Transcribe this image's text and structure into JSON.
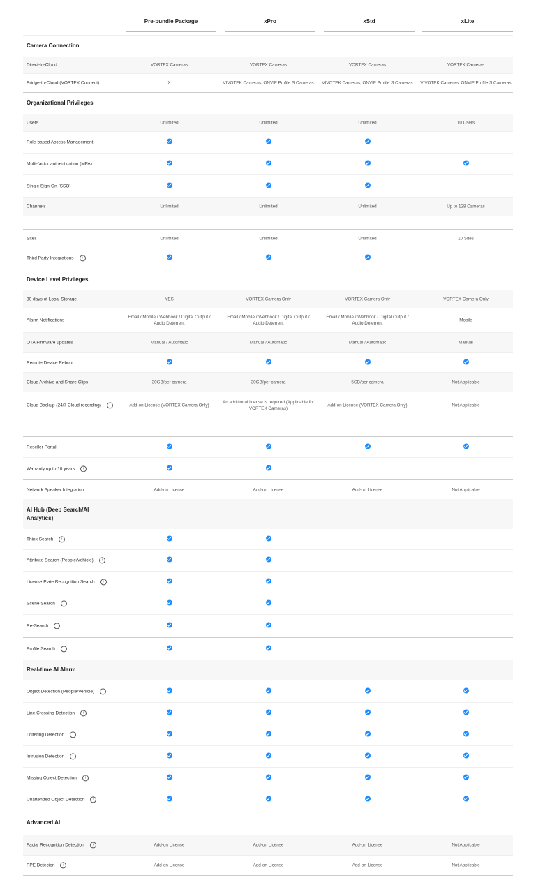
{
  "colors": {
    "accent": "#1a8cff",
    "header_underline": "#8fc4f5"
  },
  "icons": {
    "check": "check-circle-icon",
    "info": "info-circle-icon"
  },
  "plans": [
    "Pre-bundle Package",
    "xPro",
    "xStd",
    "xLite"
  ],
  "rows": [
    {
      "k": "section",
      "label": "Camera Connection"
    },
    {
      "k": "row",
      "label": "Direct-to-Cloud",
      "values": [
        "VORTEX Cameras",
        "VORTEX Cameras",
        "VORTEX Cameras",
        "VORTEX Cameras"
      ]
    },
    {
      "k": "row",
      "label": "Bridge-to-Cloud (VORTEX Connect)",
      "values": [
        "X",
        "VIVOTEK Cameras, ONVIF Profile S Cameras",
        "VIVOTEK Cameras, ONVIF Profile S Cameras",
        "VIVOTEK Cameras, ONVIF Profile S Cameras"
      ]
    },
    {
      "k": "section",
      "label": "Organizational Privileges"
    },
    {
      "k": "row",
      "label": "Users",
      "values": [
        "Unlimited",
        "Unlimited",
        "Unlimited",
        "10 Users"
      ]
    },
    {
      "k": "row",
      "label": "Role-based Access Management",
      "values": [
        "check",
        "check",
        "check",
        ""
      ]
    },
    {
      "k": "row",
      "label": "Multi-factor authentication (MFA)",
      "values": [
        "check",
        "check",
        "check",
        "check"
      ]
    },
    {
      "k": "row",
      "label": "Single Sign-On (SSO)",
      "values": [
        "check",
        "check",
        "check",
        ""
      ]
    },
    {
      "k": "row",
      "label": "Channels",
      "values": [
        "Unlimited",
        "Unlimited",
        "Unlimited",
        "Up to 128 Cameras"
      ]
    },
    {
      "k": "spacer"
    },
    {
      "k": "row",
      "label": "Sites",
      "values": [
        "Unlimited",
        "Unlimited",
        "Unlimited",
        "10 Sites"
      ]
    },
    {
      "k": "row",
      "label": "Third Party Integrations",
      "info": true,
      "values": [
        "check",
        "check",
        "check",
        ""
      ]
    },
    {
      "k": "section",
      "label": "Device Level Privileges"
    },
    {
      "k": "row",
      "label": "30 days of Local Storage",
      "values": [
        "YES",
        "VORTEX Camera Only",
        "VORTEX Camera Only",
        "VORTEX Camera Only"
      ]
    },
    {
      "k": "row",
      "label": "Alarm Notifications",
      "values": [
        "Email / Mobile / Webhook / Digital Output / Audio Deterrent",
        "Email / Mobile / Webhook / Digital Output / Audio Deterrent",
        "Email / Mobile / Webhook / Digital Output / Audio Deterrent",
        "Mobile"
      ]
    },
    {
      "k": "row",
      "label": "OTA Firmware updates",
      "values": [
        "Manual / Automatic",
        "Manual / Automatic",
        "Manual / Automatic",
        "Manual"
      ]
    },
    {
      "k": "row",
      "label": "Remote Device Reboot",
      "values": [
        "check",
        "check",
        "check",
        "check"
      ]
    },
    {
      "k": "row",
      "label": "Cloud Archive and Share Clips",
      "values": [
        "30GB/per camera",
        "30GB/per camera",
        "5GB/per camera",
        "Not Applicable"
      ]
    },
    {
      "k": "row",
      "label": "Cloud Backup (24/7 Cloud recording)",
      "info": true,
      "values": [
        "Add-on License (VORTEX Camera Only)",
        "An additional license is required (Applicable for VORTEX Cameras)",
        "Add-on License (VORTEX Camera Only)",
        "Not Applicable"
      ]
    },
    {
      "k": "spacer"
    },
    {
      "k": "row",
      "label": "Reseller Portal",
      "values": [
        "check",
        "check",
        "check",
        "check"
      ]
    },
    {
      "k": "row",
      "label": "Warranty up to 10 years",
      "info": true,
      "values": [
        "check",
        "check",
        "",
        ""
      ]
    },
    {
      "k": "row",
      "label": "Network Speaker Integration",
      "values": [
        "Add-on License",
        "Add-on License",
        "Add-on License",
        "Not Applicable"
      ]
    },
    {
      "k": "section",
      "label": "AI Hub (Deep Search/AI Analytics)"
    },
    {
      "k": "row",
      "label": "Think Search",
      "info": true,
      "values": [
        "check",
        "check",
        "",
        ""
      ]
    },
    {
      "k": "row",
      "label": "Attribute Search (People/Vehicle)",
      "info": true,
      "values": [
        "check",
        "check",
        "",
        ""
      ]
    },
    {
      "k": "row",
      "label": "License Plate Recognition Search",
      "info": true,
      "values": [
        "check",
        "check",
        "",
        ""
      ]
    },
    {
      "k": "row",
      "label": "Scene Search",
      "info": true,
      "values": [
        "check",
        "check",
        "",
        ""
      ]
    },
    {
      "k": "row",
      "label": "Re-Search",
      "info": true,
      "values": [
        "check",
        "check",
        "",
        ""
      ]
    },
    {
      "k": "row",
      "label": "Profile Search",
      "info": true,
      "values": [
        "check",
        "check",
        "",
        ""
      ]
    },
    {
      "k": "section",
      "label": "Real-time AI Alarm"
    },
    {
      "k": "row",
      "label": "Object Detection (People/Vehicle)",
      "info": true,
      "values": [
        "check",
        "check",
        "check",
        "check"
      ]
    },
    {
      "k": "row",
      "label": "Line Crossing Detection",
      "info": true,
      "values": [
        "check",
        "check",
        "check",
        "check"
      ]
    },
    {
      "k": "row",
      "label": "Loitering Detection",
      "info": true,
      "values": [
        "check",
        "check",
        "check",
        "check"
      ]
    },
    {
      "k": "row",
      "label": "Intrusion Detection",
      "info": true,
      "values": [
        "check",
        "check",
        "check",
        "check"
      ]
    },
    {
      "k": "row",
      "label": "Missing Object Detection",
      "info": true,
      "values": [
        "check",
        "check",
        "check",
        "check"
      ]
    },
    {
      "k": "row",
      "label": "Unattended Object Detection",
      "info": true,
      "values": [
        "check",
        "check",
        "check",
        "check"
      ]
    },
    {
      "k": "section",
      "label": "Advanced AI"
    },
    {
      "k": "row",
      "label": "Facial Recognition Detection",
      "info": true,
      "values": [
        "Add-on License",
        "Add-on License",
        "Add-on License",
        "Not Applicable"
      ]
    },
    {
      "k": "row",
      "label": "PPE Detecion",
      "info": true,
      "values": [
        "Add-on License",
        "Add-on License",
        "Add-on License",
        "Not Applicable"
      ]
    }
  ]
}
